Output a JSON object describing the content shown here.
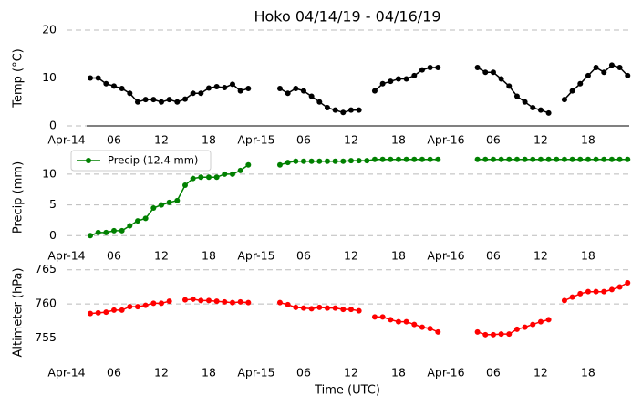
{
  "chart_data": [
    {
      "type": "line",
      "title": "Hoko 04/14/19 - 04/16/19",
      "ylabel": "Temp (°C)",
      "x": [
        3,
        4,
        5,
        6,
        7,
        8,
        9,
        10,
        11,
        12,
        13,
        14,
        15,
        16,
        17,
        18,
        19,
        20,
        21,
        22,
        23,
        24,
        25,
        26,
        27,
        28,
        29,
        30,
        31,
        32,
        33,
        34,
        35,
        36,
        37,
        38,
        39,
        40,
        41,
        42,
        43,
        44,
        45,
        46,
        47,
        48,
        49,
        50,
        51,
        52,
        53,
        54,
        55,
        56,
        57,
        58,
        59,
        60,
        61,
        62,
        63,
        64,
        65,
        66,
        67,
        68,
        69,
        70,
        71
      ],
      "values": [
        10,
        10,
        8.8,
        8.3,
        7.8,
        6.8,
        5,
        5.5,
        5.5,
        5,
        5.5,
        5,
        5.6,
        6.8,
        6.8,
        7.9,
        8.2,
        8,
        8.7,
        7.3,
        7.8,
        null,
        null,
        null,
        7.8,
        6.8,
        7.8,
        7.3,
        6.2,
        5,
        3.8,
        3.3,
        2.8,
        3.3,
        3.3,
        null,
        7.3,
        8.8,
        9.3,
        9.8,
        9.8,
        10.5,
        11.7,
        12.2,
        12.2,
        null,
        null,
        null,
        null,
        12.2,
        11.2,
        11.2,
        9.8,
        8.3,
        6.2,
        5,
        3.8,
        3.3,
        2.7,
        null,
        5.5,
        7.3,
        8.8,
        10.5,
        12.2,
        11.2,
        12.7,
        12.2,
        10.5
      ],
      "color": "#000000",
      "xlim": [
        0,
        71.2
      ],
      "xticks": [
        {
          "value": 0,
          "label": "Apr-14"
        },
        {
          "value": 6,
          "label": "06"
        },
        {
          "value": 12,
          "label": "12"
        },
        {
          "value": 18,
          "label": "18"
        },
        {
          "value": 24,
          "label": "Apr-15"
        },
        {
          "value": 30,
          "label": "06"
        },
        {
          "value": 36,
          "label": "12"
        },
        {
          "value": 42,
          "label": "18"
        },
        {
          "value": 48,
          "label": "Apr-16"
        },
        {
          "value": 54,
          "label": "06"
        },
        {
          "value": 60,
          "label": "12"
        },
        {
          "value": 66,
          "label": "18"
        }
      ],
      "ylim": [
        0,
        20
      ],
      "yticks": [
        0,
        10,
        20
      ],
      "grid": true
    },
    {
      "type": "line",
      "ylabel": "Precip (mm)",
      "legend": "upper left",
      "x": [
        3,
        4,
        5,
        6,
        7,
        8,
        9,
        10,
        11,
        12,
        13,
        14,
        15,
        16,
        17,
        18,
        19,
        20,
        21,
        22,
        23,
        24,
        25,
        26,
        27,
        28,
        29,
        30,
        31,
        32,
        33,
        34,
        35,
        36,
        37,
        38,
        39,
        40,
        41,
        42,
        43,
        44,
        45,
        46,
        47,
        48,
        49,
        50,
        51,
        52,
        53,
        54,
        55,
        56,
        57,
        58,
        59,
        60,
        61,
        62,
        63,
        64,
        65,
        66,
        67,
        68,
        69,
        70,
        71
      ],
      "series": [
        {
          "name": "Precip (12.4 mm)",
          "color": "#008000",
          "values": [
            0,
            0.5,
            0.5,
            0.8,
            0.8,
            1.6,
            2.4,
            2.8,
            4.5,
            5,
            5.4,
            5.7,
            8.2,
            9.3,
            9.5,
            9.5,
            9.5,
            10,
            10,
            10.6,
            11.5,
            null,
            null,
            null,
            11.5,
            11.9,
            12.1,
            12.1,
            12.1,
            12.1,
            12.1,
            12.1,
            12.1,
            12.2,
            12.2,
            12.2,
            12.4,
            12.4,
            12.4,
            12.4,
            12.4,
            12.4,
            12.4,
            12.4,
            12.4,
            null,
            null,
            null,
            null,
            12.4,
            12.4,
            12.4,
            12.4,
            12.4,
            12.4,
            12.4,
            12.4,
            12.4,
            12.4,
            12.4,
            12.4,
            12.4,
            12.4,
            12.4,
            12.4,
            12.4,
            12.4,
            12.4,
            12.4
          ]
        }
      ],
      "xlim": [
        0,
        71.2
      ],
      "xticks": [
        {
          "value": 0,
          "label": "Apr-14"
        },
        {
          "value": 6,
          "label": "06"
        },
        {
          "value": 12,
          "label": "12"
        },
        {
          "value": 18,
          "label": "18"
        },
        {
          "value": 24,
          "label": "Apr-15"
        },
        {
          "value": 30,
          "label": "06"
        },
        {
          "value": 36,
          "label": "12"
        },
        {
          "value": 42,
          "label": "18"
        },
        {
          "value": 48,
          "label": "Apr-16"
        },
        {
          "value": 54,
          "label": "06"
        },
        {
          "value": 60,
          "label": "12"
        },
        {
          "value": 66,
          "label": "18"
        }
      ],
      "ylim": [
        -1,
        13.4
      ],
      "yticks": [
        0,
        5,
        10
      ],
      "grid": true
    },
    {
      "type": "line",
      "ylabel": "Altimeter (hPa)",
      "xlabel": "Time (UTC)",
      "x": [
        3,
        4,
        5,
        6,
        7,
        8,
        9,
        10,
        11,
        12,
        13,
        14,
        15,
        16,
        17,
        18,
        19,
        20,
        21,
        22,
        23,
        24,
        25,
        26,
        27,
        28,
        29,
        30,
        31,
        32,
        33,
        34,
        35,
        36,
        37,
        38,
        39,
        40,
        41,
        42,
        43,
        44,
        45,
        46,
        47,
        48,
        49,
        50,
        51,
        52,
        53,
        54,
        55,
        56,
        57,
        58,
        59,
        60,
        61,
        62,
        63,
        64,
        65,
        66,
        67,
        68,
        69,
        70,
        71
      ],
      "values": [
        758.6,
        758.7,
        758.8,
        759.1,
        759.1,
        759.6,
        759.6,
        759.8,
        760.1,
        760.1,
        760.4,
        null,
        760.6,
        760.7,
        760.5,
        760.5,
        760.4,
        760.3,
        760.2,
        760.3,
        760.2,
        null,
        null,
        null,
        760.2,
        759.9,
        759.5,
        759.4,
        759.3,
        759.5,
        759.4,
        759.4,
        759.2,
        759.2,
        759.0,
        null,
        758.1,
        758.1,
        757.7,
        757.4,
        757.4,
        757.0,
        756.6,
        756.4,
        755.9,
        null,
        null,
        null,
        null,
        755.9,
        755.5,
        755.5,
        755.6,
        755.6,
        756.3,
        756.6,
        757.0,
        757.4,
        757.7,
        null,
        760.5,
        761.0,
        761.5,
        761.8,
        761.8,
        761.8,
        762.1,
        762.5,
        763.1
      ],
      "color": "#ff0000",
      "xlim": [
        0,
        71.2
      ],
      "xticks": [
        {
          "value": 0,
          "label": "Apr-14"
        },
        {
          "value": 6,
          "label": "06"
        },
        {
          "value": 12,
          "label": "12"
        },
        {
          "value": 18,
          "label": "18"
        },
        {
          "value": 24,
          "label": "Apr-15"
        },
        {
          "value": 30,
          "label": "06"
        },
        {
          "value": 36,
          "label": "12"
        },
        {
          "value": 42,
          "label": "18"
        },
        {
          "value": 48,
          "label": "Apr-16"
        },
        {
          "value": 54,
          "label": "06"
        },
        {
          "value": 60,
          "label": "12"
        },
        {
          "value": 66,
          "label": "18"
        }
      ],
      "ylim": [
        752,
        765.5
      ],
      "yticks": [
        755,
        760,
        765
      ],
      "grid": true
    }
  ]
}
